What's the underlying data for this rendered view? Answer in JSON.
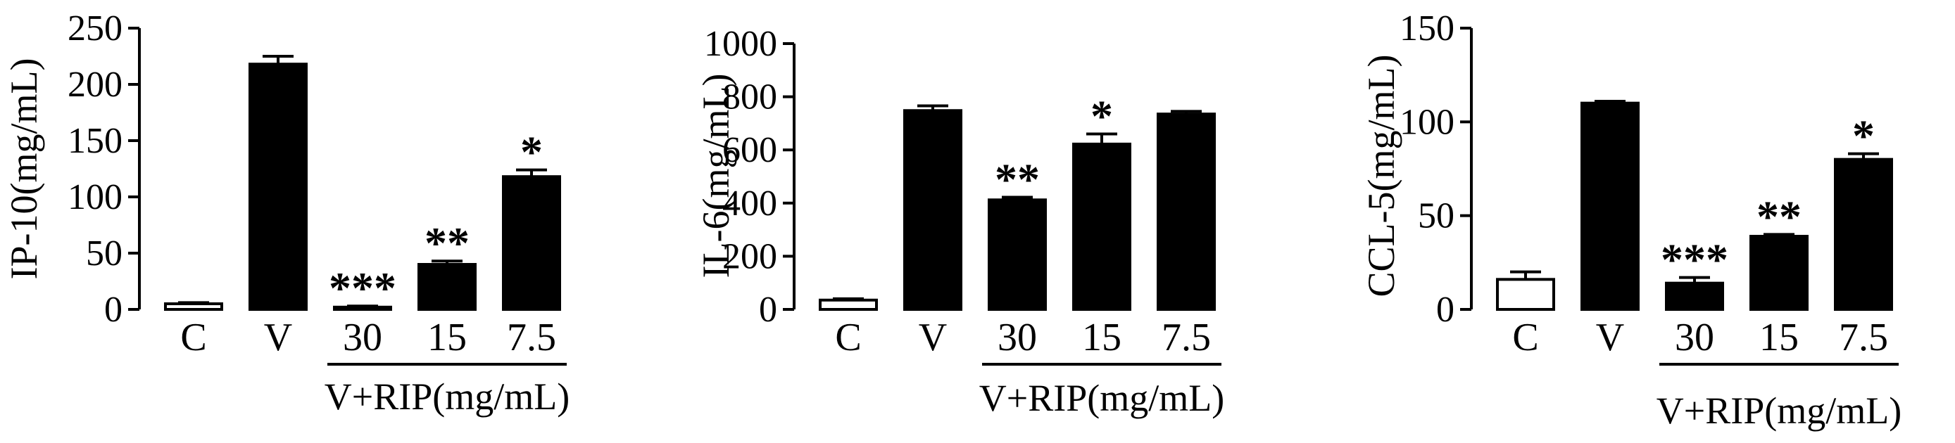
{
  "chart_data": [
    {
      "type": "bar",
      "categories": [
        "C",
        "V",
        "30",
        "15",
        "7.5"
      ],
      "values": [
        5,
        218,
        2,
        40,
        118
      ],
      "errors": [
        1,
        7,
        1,
        3,
        6
      ],
      "significance": [
        "",
        "",
        "***",
        "**",
        "*"
      ],
      "bar_fill": [
        "white",
        "black",
        "black",
        "black",
        "black"
      ],
      "ylabel": "IP-10(mg/mL)",
      "ylim": [
        0,
        250
      ],
      "yticks": [
        "0",
        "50",
        "100",
        "150",
        "200",
        "250"
      ],
      "group_label": "V+RIP(mg/mL)",
      "group_span": [
        "30",
        "7.5"
      ]
    },
    {
      "type": "bar",
      "categories": [
        "C",
        "V",
        "30",
        "15",
        "7.5"
      ],
      "values": [
        35,
        748,
        412,
        622,
        735
      ],
      "errors": [
        5,
        18,
        10,
        38,
        10
      ],
      "significance": [
        "",
        "",
        "**",
        "*",
        ""
      ],
      "bar_fill": [
        "white",
        "black",
        "black",
        "black",
        "black"
      ],
      "ylabel": "IL-6(mg/mL)",
      "ylim": [
        0,
        1000
      ],
      "yticks": [
        "0",
        "200",
        "400",
        "600",
        "800",
        "1000"
      ],
      "group_label": "V+RIP(mg/mL)",
      "group_span": [
        "30",
        "7.5"
      ]
    },
    {
      "type": "bar",
      "categories": [
        "C",
        "V",
        "30",
        "15",
        "7.5"
      ],
      "values": [
        16,
        110,
        14,
        39,
        80
      ],
      "errors": [
        4,
        1,
        3,
        1,
        3
      ],
      "significance": [
        "",
        "",
        "***",
        "**",
        "*"
      ],
      "bar_fill": [
        "white",
        "black",
        "black",
        "black",
        "black"
      ],
      "ylabel": "CCL-5(mg/mL)",
      "ylim": [
        0,
        150
      ],
      "yticks": [
        "0",
        "50",
        "100",
        "150"
      ],
      "group_label": "V+RIP(mg/mL)",
      "group_span": [
        "30",
        "7.5"
      ]
    }
  ]
}
